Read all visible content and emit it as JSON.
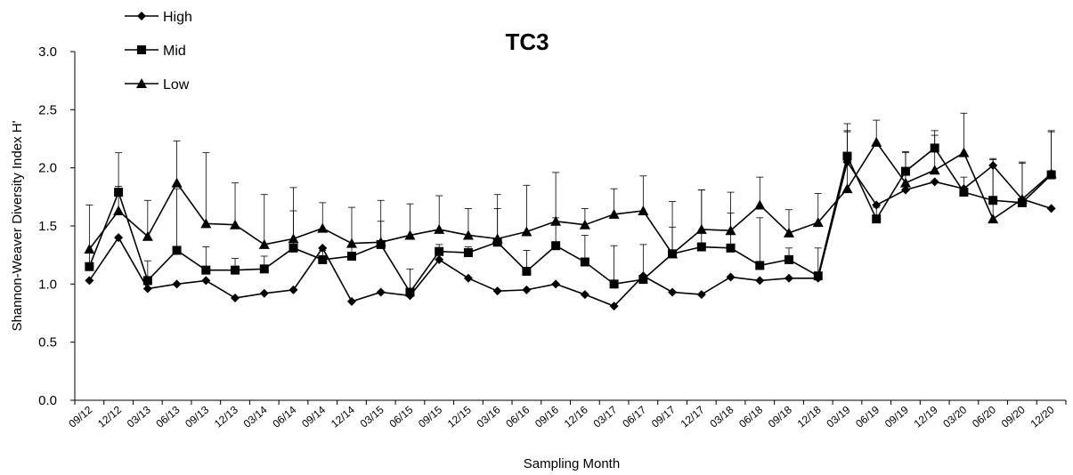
{
  "chart_data": {
    "type": "line",
    "title": "TC3",
    "xlabel": "Sampling Month",
    "ylabel": "Shannon-Weaver Diversity Index H'",
    "ylim": [
      0,
      3.0
    ],
    "yticks": [
      "0.0",
      "0.5",
      "1.0",
      "1.5",
      "2.0",
      "2.5",
      "3.0"
    ],
    "grid": false,
    "legend_position": "top-left",
    "categories": [
      "09/12",
      "12/12",
      "03/13",
      "06/13",
      "09/13",
      "12/13",
      "03/14",
      "06/14",
      "09/14",
      "12/14",
      "03/15",
      "06/15",
      "09/15",
      "12/15",
      "03/16",
      "06/16",
      "09/16",
      "12/16",
      "03/17",
      "06/17",
      "09/17",
      "12/17",
      "03/18",
      "06/18",
      "09/18",
      "12/18",
      "03/19",
      "06/19",
      "09/19",
      "12/19",
      "03/20",
      "06/20",
      "09/20",
      "12/20"
    ],
    "series": [
      {
        "name": "High",
        "marker": "diamond",
        "values": [
          1.03,
          1.4,
          0.96,
          1.0,
          1.03,
          0.88,
          0.92,
          0.95,
          1.31,
          0.85,
          0.93,
          0.9,
          1.21,
          1.05,
          0.94,
          0.95,
          1.0,
          0.91,
          0.81,
          1.07,
          0.93,
          0.91,
          1.06,
          1.03,
          1.05,
          1.05,
          2.05,
          1.68,
          1.81,
          1.88,
          1.82,
          2.02,
          1.73,
          1.65
        ],
        "error": [
          0,
          0,
          0,
          0,
          0,
          0,
          0,
          0,
          0,
          0,
          0,
          0,
          0,
          0,
          0,
          0,
          0,
          0,
          0,
          0,
          0,
          0,
          0,
          0,
          0,
          0,
          0.26,
          0,
          0,
          0,
          0,
          0,
          0,
          0
        ]
      },
      {
        "name": "Mid",
        "marker": "square",
        "values": [
          1.15,
          1.79,
          1.03,
          1.29,
          1.12,
          1.12,
          1.13,
          1.31,
          1.21,
          1.24,
          1.34,
          0.93,
          1.28,
          1.27,
          1.36,
          1.11,
          1.33,
          1.19,
          1.0,
          1.04,
          1.26,
          1.32,
          1.31,
          1.16,
          1.21,
          1.07,
          2.1,
          1.56,
          1.97,
          2.17,
          1.79,
          1.72,
          1.7,
          1.94
        ],
        "error": [
          0.12,
          0.05,
          0.17,
          0.53,
          0.2,
          0.1,
          0.11,
          0.32,
          0.08,
          0.08,
          0.2,
          0.2,
          0.06,
          0.05,
          0.29,
          0.18,
          0.24,
          0.23,
          0.33,
          0.3,
          0.23,
          0.49,
          0.3,
          0.41,
          0.1,
          0.24,
          0.22,
          0.1,
          0.16,
          0.11,
          0.13,
          0.35,
          0.34,
          0.37
        ]
      },
      {
        "name": "Low",
        "marker": "triangle",
        "values": [
          1.3,
          1.63,
          1.41,
          1.87,
          1.52,
          1.51,
          1.34,
          1.39,
          1.48,
          1.35,
          1.36,
          1.42,
          1.47,
          1.42,
          1.39,
          1.45,
          1.54,
          1.51,
          1.6,
          1.63,
          1.26,
          1.47,
          1.46,
          1.68,
          1.44,
          1.53,
          1.82,
          2.22,
          1.87,
          1.98,
          2.13,
          1.56,
          1.73,
          1.95
        ],
        "error": [
          0.38,
          0.5,
          0.31,
          0.36,
          0.61,
          0.36,
          0.43,
          0.44,
          0.22,
          0.31,
          0.36,
          0.27,
          0.29,
          0.23,
          0.38,
          0.4,
          0.42,
          0.14,
          0.22,
          0.3,
          0.45,
          0.34,
          0.33,
          0.24,
          0.2,
          0.25,
          0.56,
          0.19,
          0.27,
          0.34,
          0.34,
          0.52,
          0.32,
          0.37
        ]
      }
    ]
  }
}
